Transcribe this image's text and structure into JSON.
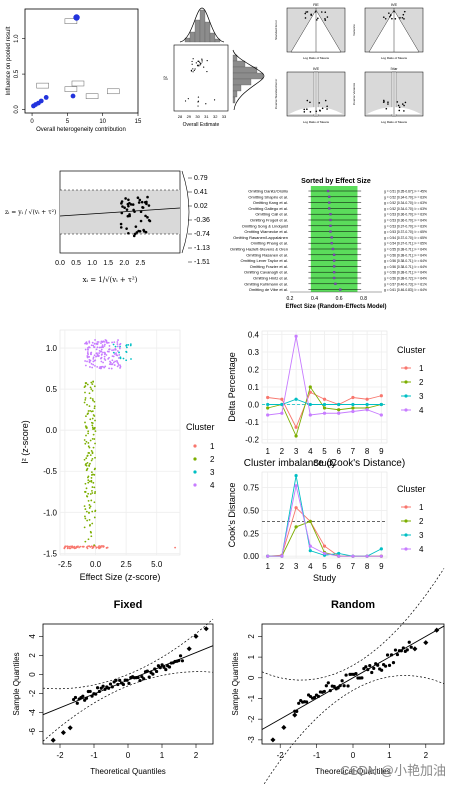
{
  "watermark": "CSDN @小艳加油",
  "chart_data": [
    {
      "type": "scatter",
      "ylabel": "Influence on pooled result",
      "xlabel": "Overall heterogeneity contribution",
      "xticks": [
        0,
        5,
        10,
        15
      ],
      "yticks": [
        0.0,
        0.5,
        1.0
      ],
      "xlim": [
        -1,
        15
      ],
      "ylim": [
        -0.05,
        1.42
      ],
      "points": [
        [
          0.2,
          0.05
        ],
        [
          0.5,
          0.07
        ],
        [
          0.9,
          0.09
        ],
        [
          1.3,
          0.12
        ],
        [
          2.0,
          0.17
        ],
        [
          5.8,
          0.19
        ],
        [
          6.3,
          1.3
        ]
      ],
      "labeled_boxes": [
        [
          1.5,
          0.33
        ],
        [
          5.5,
          0.28
        ],
        [
          6.5,
          0.36
        ],
        [
          8.5,
          0.18
        ],
        [
          11.5,
          0.25
        ],
        [
          5.5,
          1.24
        ]
      ]
    },
    {
      "type": "scatter",
      "xlabel": "Overall Estimate",
      "ylabel": "I²",
      "xticks": [
        28,
        29,
        30,
        31,
        32,
        33
      ],
      "note": "marginal histograms top and right"
    },
    {
      "type": "line",
      "panels": [
        {
          "title": "RE",
          "xlabel": "Log Ratio of Means",
          "ylabel": "Standard Error"
        },
        {
          "title": "IVE",
          "xlabel": "Log Ratio of Means",
          "ylabel": "Variance"
        },
        {
          "title": "IVE",
          "xlabel": "Log Ratio of Means",
          "ylabel": "Inverse Standard Error"
        },
        {
          "title": "IVar",
          "xlabel": "Log Ratio of Means",
          "ylabel": "Inverse Variance"
        }
      ]
    },
    {
      "type": "scatter",
      "ylabel_left": "zᵢ = yᵢ / √(vᵢ + τ²)",
      "xlabel": "xᵢ = 1/√(vᵢ + τ²)",
      "xticks": [
        0.0,
        0.5,
        1.0,
        1.5,
        2.0,
        2.5
      ],
      "right_ticks": [
        "0.79",
        "0.41",
        "0.02",
        "-0.36",
        "-0.74",
        "-1.13",
        "-1.51"
      ]
    },
    {
      "type": "bar",
      "title": "Sorted by Effect Size",
      "xlabel": "Effect Size (Random-Effects Model)",
      "xticks": [
        "0.2",
        "0.4",
        "0.6",
        "0.8"
      ],
      "studies": [
        "Omitting Danitz/Orsillo",
        "Omitting Shapiro et al.",
        "Omitting Kang et al.",
        "Omitting Gallego et al.",
        "Omitting Call et al.",
        "Omitting Frogeli et al.",
        "Omitting Song & Lindquist",
        "Omitting Warnecke et al.",
        "Omitting Rasanen/Lappalainen",
        "Omitting Phang et al.",
        "Omitting Hazlett-Stevens & Oren",
        "Omitting Rasanen et al.",
        "Omitting Lever Taylor et al.",
        "Omitting Frazier et al.",
        "Omitting Cavanagh et al.",
        "Omitting Hintz et al.",
        "Omitting Kuhlmann et al.",
        "Omitting de Vibe et al."
      ],
      "annotations": [
        "g = 0.51 [0.35-0.67]; I² = 45%",
        "g = 0.52 [0.34-0.70]; I² = 63%",
        "g = 0.52 [0.34-0.70]; I² = 63%",
        "g = 0.52 [0.34-0.70]; I² = 63%",
        "g = 0.53 [0.36-0.70]; I² = 63%",
        "g = 0.53 [0.36-0.70]; I² = 64%",
        "g = 0.53 [0.37-0.70]; I² = 63%",
        "g = 0.53 [0.37-0.70]; I² = 65%",
        "g = 0.54 [0.37-0.70]; I² = 65%",
        "g = 0.54 [0.37-0.71]; I² = 65%",
        "g = 0.55 [0.38-0.71]; I² = 64%",
        "g = 0.56 [0.38-0.71]; I² = 64%",
        "g = 0.56 [0.38-0.71]; I² = 64%",
        "g = 0.56 [0.38-0.71]; I² = 64%",
        "g = 0.56 [0.38-0.71]; I² = 64%",
        "g = 0.56 [0.38-0.72]; I² = 64%",
        "g = 0.57 [0.40-0.73]; I² = 61%",
        "g = 0.61 [0.46-0.83]; I² = 64%"
      ],
      "estimates": [
        0.51,
        0.52,
        0.52,
        0.52,
        0.53,
        0.53,
        0.53,
        0.53,
        0.54,
        0.54,
        0.55,
        0.56,
        0.56,
        0.56,
        0.56,
        0.56,
        0.57,
        0.61
      ],
      "xlim": [
        0.2,
        0.95
      ],
      "shade": [
        0.37,
        0.75
      ]
    },
    {
      "type": "scatter",
      "xlabel": "Effect Size (z-score)",
      "ylabel": "I² (z-score)",
      "xticks": [
        "-2.5",
        "0.0",
        "2.5",
        "5.0"
      ],
      "yticks": [
        "1.0",
        "0.5",
        "0.0",
        "-0.5",
        "-1.0",
        "-1.5"
      ],
      "xlim": [
        -2.9,
        6.9
      ],
      "ylim": [
        -1.52,
        1.22
      ],
      "legend_title": "Cluster",
      "legend": [
        "1",
        "2",
        "3",
        "4"
      ],
      "colors": [
        "#f8766d",
        "#7cae00",
        "#00bfc4",
        "#c77cff"
      ]
    },
    {
      "type": "line",
      "xlabel": "Study",
      "ylabel": "Delta Percentage",
      "x": [
        1,
        2,
        3,
        4,
        5,
        6,
        7,
        8,
        9
      ],
      "yticks": [
        "0.4",
        "0.3",
        "0.2",
        "0.1",
        "0.0",
        "-0.1",
        "-0.2"
      ],
      "ylim": [
        -0.22,
        0.42
      ],
      "legend_title": "Cluster",
      "series": [
        {
          "name": "1",
          "values": [
            0.04,
            0.03,
            -0.13,
            0.07,
            0.03,
            0.0,
            0.04,
            0.03,
            0.05
          ]
        },
        {
          "name": "2",
          "values": [
            -0.02,
            0.0,
            -0.18,
            0.1,
            -0.02,
            -0.03,
            -0.02,
            -0.02,
            0.0
          ]
        },
        {
          "name": "3",
          "values": [
            0.0,
            0.0,
            0.03,
            0.0,
            0.0,
            0.0,
            0.0,
            0.0,
            0.0
          ]
        },
        {
          "name": "4",
          "values": [
            -0.06,
            -0.05,
            0.39,
            -0.06,
            -0.05,
            -0.05,
            -0.04,
            -0.03,
            -0.06
          ]
        }
      ]
    },
    {
      "type": "line",
      "title": "Cluster imbalance (Cook's Distance)",
      "xlabel": "Study",
      "ylabel": "Cook's Distance",
      "x": [
        1,
        2,
        3,
        4,
        5,
        6,
        7,
        8,
        9
      ],
      "yticks": [
        "0.75",
        "0.50",
        "0.25",
        "0.00"
      ],
      "ylim": [
        -0.02,
        0.92
      ],
      "threshold": 0.38,
      "legend_title": "Cluster",
      "series": [
        {
          "name": "1",
          "values": [
            0.0,
            0.01,
            0.53,
            0.38,
            0.11,
            0.0,
            0.0,
            0.0,
            0.0
          ]
        },
        {
          "name": "2",
          "values": [
            0.0,
            0.0,
            0.32,
            0.38,
            0.04,
            0.0,
            0.0,
            0.0,
            0.0
          ]
        },
        {
          "name": "3",
          "values": [
            0.0,
            0.0,
            0.88,
            0.06,
            0.01,
            0.03,
            0.0,
            0.0,
            0.08
          ]
        },
        {
          "name": "4",
          "values": [
            0.0,
            0.0,
            0.77,
            0.11,
            0.03,
            0.0,
            0.0,
            0.0,
            0.0
          ]
        }
      ]
    },
    {
      "type": "scatter",
      "title": "Fixed",
      "xlabel": "Theoretical Quantiles",
      "ylabel": "Sample Quantiles",
      "xticks": [
        "-2",
        "-1",
        "0",
        "1",
        "2"
      ],
      "yticks": [
        "4",
        "2",
        "0",
        "-2",
        "-4",
        "-6"
      ],
      "xlim": [
        -2.5,
        2.5
      ],
      "ylim": [
        -7.3,
        5.3
      ],
      "line": {
        "intercept": -0.6,
        "slope": 1.45
      },
      "end_points": [
        [
          -2.2,
          -6.9
        ],
        [
          -1.9,
          -6.1
        ],
        [
          -1.7,
          -5.6
        ],
        [
          1.8,
          2.7
        ],
        [
          2.0,
          4.0
        ],
        [
          2.3,
          4.8
        ]
      ]
    },
    {
      "type": "scatter",
      "title": "Random",
      "xlabel": "Theoretical Quantiles",
      "ylabel": "Sample Quantiles",
      "xticks": [
        "-2",
        "-1",
        "0",
        "1",
        "2"
      ],
      "yticks": [
        "2",
        "1",
        "0",
        "-1",
        "-2",
        "-3"
      ],
      "xlim": [
        -2.5,
        2.5
      ],
      "ylim": [
        -3.2,
        2.6
      ],
      "line": {
        "intercept": 0.0,
        "slope": 1.0
      },
      "end_points": [
        [
          -2.2,
          -3.0
        ],
        [
          -1.9,
          -2.4
        ],
        [
          -1.6,
          -1.8
        ],
        [
          1.7,
          1.4
        ],
        [
          2.0,
          1.7
        ],
        [
          2.3,
          2.3
        ]
      ]
    }
  ]
}
